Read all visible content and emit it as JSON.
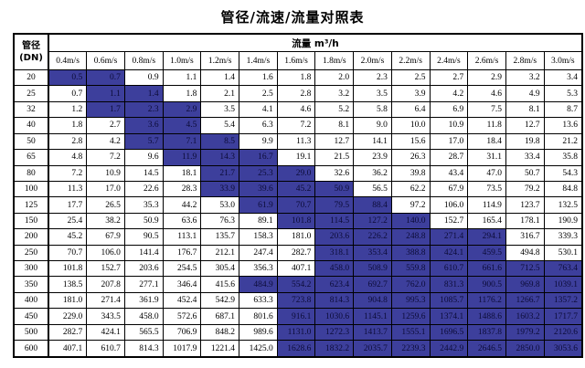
{
  "title": "管径/流速/流量对照表",
  "table": {
    "corner": {
      "line1": "管径",
      "line2": "(DN)"
    },
    "flow_header": "流量 m³/h",
    "velocity_headers": [
      "0.4m/s",
      "0.6m/s",
      "0.8m/s",
      "1.0m/s",
      "1.2m/s",
      "1.4m/s",
      "1.6m/s",
      "1.8m/s",
      "2.0m/s",
      "2.2m/s",
      "2.4m/s",
      "2.6m/s",
      "2.8m/s",
      "3.0m/s"
    ],
    "rows": [
      {
        "dn": "20",
        "values": [
          "0.5",
          "0.7",
          "0.9",
          "1.1",
          "1.4",
          "1.6",
          "1.8",
          "2.0",
          "2.3",
          "2.5",
          "2.7",
          "2.9",
          "3.2",
          "3.4"
        ],
        "highlight": [
          0,
          1
        ]
      },
      {
        "dn": "25",
        "values": [
          "0.7",
          "1.1",
          "1.4",
          "1.8",
          "2.1",
          "2.5",
          "2.8",
          "3.2",
          "3.5",
          "3.9",
          "4.2",
          "4.6",
          "4.9",
          "5.3"
        ],
        "highlight": [
          1,
          2
        ]
      },
      {
        "dn": "32",
        "values": [
          "1.2",
          "1.7",
          "2.3",
          "2.9",
          "3.5",
          "4.1",
          "4.6",
          "5.2",
          "5.8",
          "6.4",
          "6.9",
          "7.5",
          "8.1",
          "8.7"
        ],
        "highlight": [
          1,
          3
        ]
      },
      {
        "dn": "40",
        "values": [
          "1.8",
          "2.7",
          "3.6",
          "4.5",
          "5.4",
          "6.3",
          "7.2",
          "8.1",
          "9.0",
          "10.0",
          "10.9",
          "11.8",
          "12.7",
          "13.6"
        ],
        "highlight": [
          2,
          3
        ]
      },
      {
        "dn": "50",
        "values": [
          "2.8",
          "4.2",
          "5.7",
          "7.1",
          "8.5",
          "9.9",
          "11.3",
          "12.7",
          "14.1",
          "15.6",
          "17.0",
          "18.4",
          "19.8",
          "21.2"
        ],
        "highlight": [
          2,
          4
        ]
      },
      {
        "dn": "65",
        "values": [
          "4.8",
          "7.2",
          "9.6",
          "11.9",
          "14.3",
          "16.7",
          "19.1",
          "21.5",
          "23.9",
          "26.3",
          "28.7",
          "31.1",
          "33.4",
          "35.8"
        ],
        "highlight": [
          3,
          5
        ]
      },
      {
        "dn": "80",
        "values": [
          "7.2",
          "10.9",
          "14.5",
          "18.1",
          "21.7",
          "25.3",
          "29.0",
          "32.6",
          "36.2",
          "39.8",
          "43.4",
          "47.0",
          "50.7",
          "54.3"
        ],
        "highlight": [
          4,
          6
        ]
      },
      {
        "dn": "100",
        "values": [
          "11.3",
          "17.0",
          "22.6",
          "28.3",
          "33.9",
          "39.6",
          "45.2",
          "50.9",
          "56.5",
          "62.2",
          "67.9",
          "73.5",
          "79.2",
          "84.8"
        ],
        "highlight": [
          4,
          7
        ]
      },
      {
        "dn": "125",
        "values": [
          "17.7",
          "26.5",
          "35.3",
          "44.2",
          "53.0",
          "61.9",
          "70.7",
          "79.5",
          "88.4",
          "97.2",
          "106.0",
          "114.9",
          "123.7",
          "132.5"
        ],
        "highlight": [
          5,
          8
        ]
      },
      {
        "dn": "150",
        "values": [
          "25.4",
          "38.2",
          "50.9",
          "63.6",
          "76.3",
          "89.1",
          "101.8",
          "114.5",
          "127.2",
          "140.0",
          "152.7",
          "165.4",
          "178.1",
          "190.9"
        ],
        "highlight": [
          6,
          9
        ]
      },
      {
        "dn": "200",
        "values": [
          "45.2",
          "67.9",
          "90.5",
          "113.1",
          "135.7",
          "158.3",
          "181.0",
          "203.6",
          "226.2",
          "248.8",
          "271.4",
          "294.1",
          "316.7",
          "339.3"
        ],
        "highlight": [
          7,
          11
        ]
      },
      {
        "dn": "250",
        "values": [
          "70.7",
          "106.0",
          "141.4",
          "176.7",
          "212.1",
          "247.4",
          "282.7",
          "318.1",
          "353.4",
          "388.8",
          "424.1",
          "459.5",
          "494.8",
          "530.1"
        ],
        "highlight": [
          7,
          11
        ]
      },
      {
        "dn": "300",
        "values": [
          "101.8",
          "152.7",
          "203.6",
          "254.5",
          "305.4",
          "356.3",
          "407.1",
          "458.0",
          "508.9",
          "559.8",
          "610.7",
          "661.6",
          "712.5",
          "763.4"
        ],
        "highlight": [
          7,
          13
        ]
      },
      {
        "dn": "350",
        "values": [
          "138.5",
          "207.8",
          "277.1",
          "346.4",
          "415.6",
          "484.9",
          "554.2",
          "623.4",
          "692.7",
          "762.0",
          "831.3",
          "900.5",
          "969.8",
          "1039.1"
        ],
        "highlight": [
          5,
          13
        ]
      },
      {
        "dn": "400",
        "values": [
          "181.0",
          "271.4",
          "361.9",
          "452.4",
          "542.9",
          "633.3",
          "723.8",
          "814.3",
          "904.8",
          "995.3",
          "1085.7",
          "1176.2",
          "1266.7",
          "1357.2"
        ],
        "highlight": [
          6,
          13
        ]
      },
      {
        "dn": "450",
        "values": [
          "229.0",
          "343.5",
          "458.0",
          "572.6",
          "687.1",
          "801.6",
          "916.1",
          "1030.6",
          "1145.1",
          "1259.6",
          "1374.1",
          "1488.6",
          "1603.2",
          "1717.7"
        ],
        "highlight": [
          6,
          13
        ]
      },
      {
        "dn": "500",
        "values": [
          "282.7",
          "424.1",
          "565.5",
          "706.9",
          "848.2",
          "989.6",
          "1131.0",
          "1272.3",
          "1413.7",
          "1555.1",
          "1696.5",
          "1837.8",
          "1979.2",
          "2120.6"
        ],
        "highlight": [
          6,
          13
        ]
      },
      {
        "dn": "600",
        "values": [
          "407.1",
          "610.7",
          "814.3",
          "1017.9",
          "1221.4",
          "1425.0",
          "1628.6",
          "1832.2",
          "2035.7",
          "2239.3",
          "2442.9",
          "2646.5",
          "2850.0",
          "3053.6"
        ],
        "highlight": [
          6,
          13
        ]
      }
    ]
  },
  "colors": {
    "highlight_bg": "#3d3f9c",
    "highlight_text": "#0c0c38",
    "border": "#000000",
    "text": "#000000",
    "background": "#ffffff"
  }
}
